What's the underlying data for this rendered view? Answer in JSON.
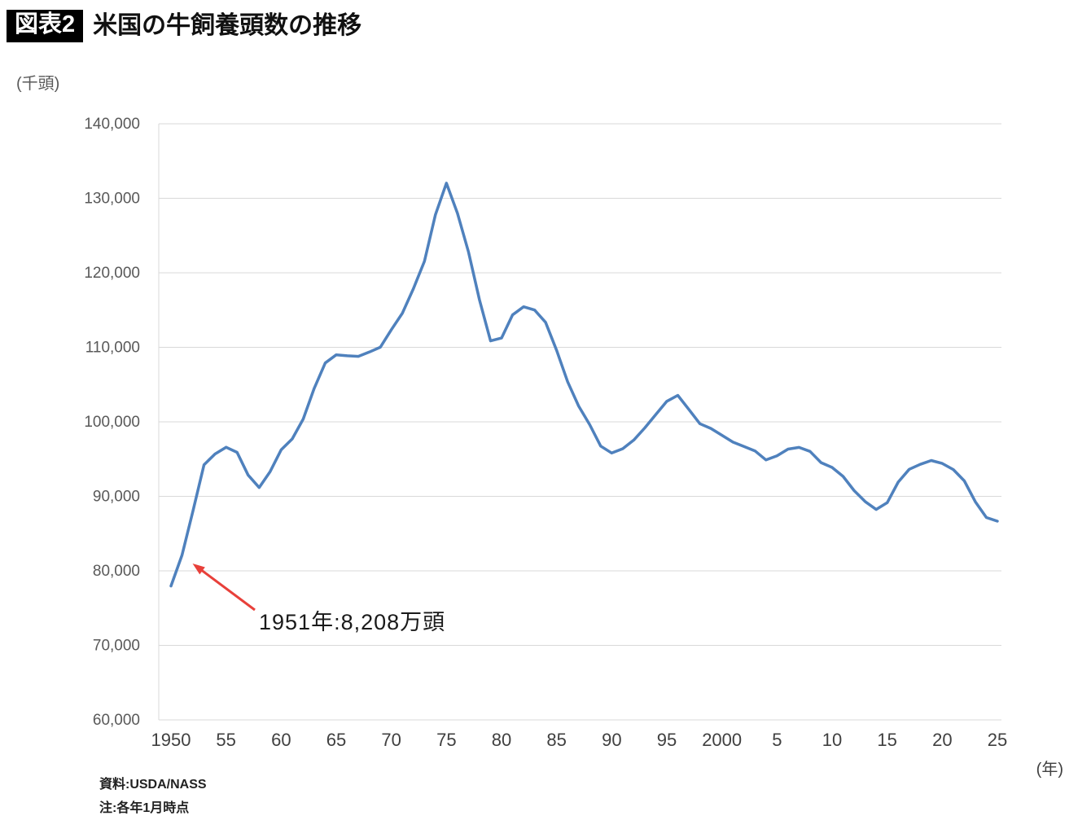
{
  "header": {
    "badge": "図表2",
    "title": "米国の牛飼養頭数の推移"
  },
  "footer": {
    "source": "資料:USDA/NASS",
    "note": "注:各年1月時点"
  },
  "chart_data": {
    "type": "line",
    "title": "米国の牛飼養頭数の推移",
    "unit_label": "(千頭)",
    "x_unit_label": "(年)",
    "series_name": "牛飼養頭数",
    "line_color": "#4f81bd",
    "grid_color": "#d9d9d9",
    "tick_color": "#595959",
    "grid": true,
    "legend": "none",
    "ylim": [
      60000,
      140000
    ],
    "y_ticks": [
      {
        "value": 60000,
        "label": "60,000"
      },
      {
        "value": 70000,
        "label": "70,000"
      },
      {
        "value": 80000,
        "label": "80,000"
      },
      {
        "value": 90000,
        "label": "90,000"
      },
      {
        "value": 100000,
        "label": "100,000"
      },
      {
        "value": 110000,
        "label": "110,000"
      },
      {
        "value": 120000,
        "label": "120,000"
      },
      {
        "value": 130000,
        "label": "130,000"
      },
      {
        "value": 140000,
        "label": "140,000"
      }
    ],
    "x_ticks": [
      {
        "year": 1950,
        "label": "1950"
      },
      {
        "year": 1955,
        "label": "55"
      },
      {
        "year": 1960,
        "label": "60"
      },
      {
        "year": 1965,
        "label": "65"
      },
      {
        "year": 1970,
        "label": "70"
      },
      {
        "year": 1975,
        "label": "75"
      },
      {
        "year": 1980,
        "label": "80"
      },
      {
        "year": 1985,
        "label": "85"
      },
      {
        "year": 1990,
        "label": "90"
      },
      {
        "year": 1995,
        "label": "95"
      },
      {
        "year": 2000,
        "label": "2000"
      },
      {
        "year": 2005,
        "label": "5"
      },
      {
        "year": 2010,
        "label": "10"
      },
      {
        "year": 2015,
        "label": "15"
      },
      {
        "year": 2020,
        "label": "20"
      },
      {
        "year": 2025,
        "label": "25"
      }
    ],
    "years": [
      1950,
      1951,
      1952,
      1953,
      1954,
      1955,
      1956,
      1957,
      1958,
      1959,
      1960,
      1961,
      1962,
      1963,
      1964,
      1965,
      1966,
      1967,
      1968,
      1969,
      1970,
      1971,
      1972,
      1973,
      1974,
      1975,
      1976,
      1977,
      1978,
      1979,
      1980,
      1981,
      1982,
      1983,
      1984,
      1985,
      1986,
      1987,
      1988,
      1989,
      1990,
      1991,
      1992,
      1993,
      1994,
      1995,
      1996,
      1997,
      1998,
      1999,
      2000,
      2001,
      2002,
      2003,
      2004,
      2005,
      2006,
      2007,
      2008,
      2009,
      2010,
      2011,
      2012,
      2013,
      2014,
      2015,
      2016,
      2017,
      2018,
      2019,
      2020,
      2021,
      2022,
      2023,
      2024,
      2025
    ],
    "values": [
      77963,
      82083,
      88072,
      94241,
      95679,
      96592,
      95900,
      92860,
      91176,
      93322,
      96236,
      97700,
      100369,
      104488,
      107903,
      109000,
      108862,
      108783,
      109371,
      110015,
      112369,
      114578,
      117862,
      121539,
      127788,
      132028,
      127980,
      122810,
      116375,
      110864,
      111242,
      114351,
      115444,
      115001,
      113360,
      109582,
      105378,
      102118,
      99622,
      96740,
      95816,
      96393,
      97556,
      99176,
      100988,
      102755,
      103548,
      101656,
      99744,
      99115,
      98198,
      97277,
      96704,
      96100,
      94888,
      95438,
      96342,
      96573,
      96035,
      94521,
      93881,
      92682,
      90769,
      89300,
      88243,
      89143,
      91918,
      93625,
      94298,
      94805,
      94413,
      93595,
      92077,
      89274,
      87157,
      86662
    ],
    "annotation": {
      "text": "1951年:8,208万頭",
      "year": 1951,
      "value": 82083,
      "arrow_color": "#e8403a"
    }
  }
}
